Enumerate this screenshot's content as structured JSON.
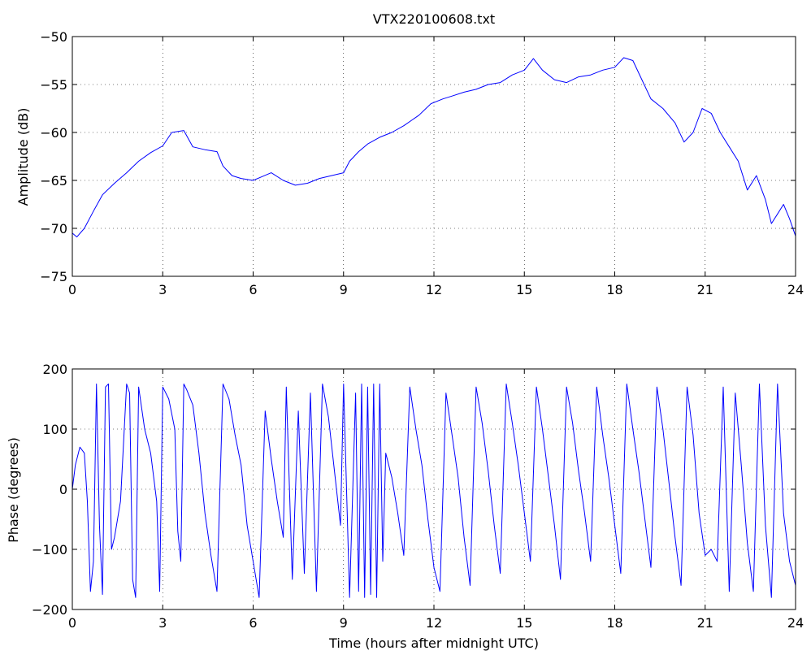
{
  "chart_data": [
    {
      "type": "line",
      "title": "VTX220100608.txt",
      "xlabel": "",
      "ylabel": "Amplitude (dB)",
      "xlim": [
        0,
        24
      ],
      "ylim": [
        -75,
        -50
      ],
      "xticks": [
        "0",
        "3",
        "6",
        "9",
        "12",
        "15",
        "18",
        "21",
        "24"
      ],
      "yticks": [
        "−50",
        "−55",
        "−60",
        "−65",
        "−70",
        "−75"
      ],
      "grid": true,
      "color": "#0000ff",
      "series": [
        {
          "x": [
            0,
            0.15,
            0.4,
            0.7,
            1.0,
            1.4,
            1.8,
            2.2,
            2.6,
            3.0,
            3.3,
            3.7,
            4.0,
            4.4,
            4.8,
            5.0,
            5.3,
            5.6,
            6.0,
            6.3,
            6.6,
            7.0,
            7.4,
            7.8,
            8.2,
            8.6,
            9.0,
            9.2,
            9.5,
            9.8,
            10.2,
            10.6,
            11.0,
            11.5,
            11.9,
            12.3,
            12.6,
            13.0,
            13.4,
            13.8,
            14.2,
            14.6,
            15.0,
            15.3,
            15.6,
            16.0,
            16.4,
            16.8,
            17.2,
            17.6,
            18.0,
            18.3,
            18.6,
            18.9,
            19.2,
            19.6,
            20.0,
            20.3,
            20.6,
            20.9,
            21.2,
            21.5,
            21.8,
            22.1,
            22.4,
            22.7,
            23.0,
            23.2,
            23.4,
            23.6,
            23.8,
            24.0
          ],
          "y": [
            -70.5,
            -70.9,
            -70.0,
            -68.2,
            -66.5,
            -65.3,
            -64.2,
            -63.0,
            -62.1,
            -61.4,
            -60.0,
            -59.8,
            -61.5,
            -61.8,
            -62.0,
            -63.5,
            -64.5,
            -64.8,
            -65.0,
            -64.6,
            -64.2,
            -65.0,
            -65.5,
            -65.3,
            -64.8,
            -64.5,
            -64.2,
            -63.0,
            -62.0,
            -61.2,
            -60.5,
            -60.0,
            -59.3,
            -58.2,
            -57.0,
            -56.5,
            -56.2,
            -55.8,
            -55.5,
            -55.0,
            -54.8,
            -54.0,
            -53.5,
            -52.3,
            -53.5,
            -54.5,
            -54.8,
            -54.2,
            -54.0,
            -53.5,
            -53.2,
            -52.2,
            -52.5,
            -54.5,
            -56.5,
            -57.5,
            -59.0,
            -61.0,
            -60.0,
            -57.5,
            -58.0,
            -60.0,
            -61.5,
            -63.0,
            -66.0,
            -64.5,
            -67.0,
            -69.5,
            -68.5,
            -67.5,
            -69.0,
            -70.8
          ]
        }
      ]
    },
    {
      "type": "line",
      "title": "",
      "xlabel": "Time (hours after midnight UTC)",
      "ylabel": "Phase (degrees)",
      "xlim": [
        0,
        24
      ],
      "ylim": [
        -200,
        200
      ],
      "xticks": [
        "0",
        "3",
        "6",
        "9",
        "12",
        "15",
        "18",
        "21",
        "24"
      ],
      "yticks": [
        "200",
        "100",
        "0",
        "−100",
        "−200"
      ],
      "grid": true,
      "color": "#0000ff",
      "series": [
        {
          "x": [
            0,
            0.1,
            0.25,
            0.4,
            0.5,
            0.6,
            0.7,
            0.8,
            0.9,
            1.0,
            1.1,
            1.2,
            1.3,
            1.4,
            1.6,
            1.8,
            1.9,
            2.0,
            2.1,
            2.2,
            2.4,
            2.6,
            2.8,
            2.9,
            3.0,
            3.2,
            3.4,
            3.5,
            3.6,
            3.7,
            3.8,
            4.0,
            4.2,
            4.4,
            4.6,
            4.8,
            5.0,
            5.2,
            5.4,
            5.6,
            5.8,
            6.0,
            6.1,
            6.2,
            6.4,
            6.6,
            6.8,
            7.0,
            7.1,
            7.3,
            7.5,
            7.7,
            7.9,
            8.1,
            8.3,
            8.5,
            8.7,
            8.9,
            9.0,
            9.2,
            9.4,
            9.5,
            9.6,
            9.7,
            9.8,
            9.9,
            10.0,
            10.1,
            10.2,
            10.3,
            10.4,
            10.6,
            10.8,
            11.0,
            11.2,
            11.4,
            11.6,
            11.8,
            12.0,
            12.2,
            12.4,
            12.6,
            12.8,
            13.0,
            13.2,
            13.4,
            13.6,
            13.8,
            14.0,
            14.2,
            14.4,
            14.6,
            14.8,
            15.0,
            15.2,
            15.4,
            15.6,
            15.8,
            16.0,
            16.2,
            16.4,
            16.6,
            16.8,
            17.0,
            17.2,
            17.4,
            17.6,
            17.8,
            18.0,
            18.2,
            18.4,
            18.6,
            18.8,
            19.0,
            19.2,
            19.4,
            19.6,
            19.8,
            20.0,
            20.2,
            20.4,
            20.6,
            20.8,
            21.0,
            21.2,
            21.4,
            21.6,
            21.8,
            22.0,
            22.2,
            22.4,
            22.6,
            22.8,
            23.0,
            23.2,
            23.4,
            23.6,
            23.8,
            24.0
          ],
          "y": [
            0,
            40,
            70,
            60,
            -20,
            -170,
            -120,
            175,
            -60,
            -175,
            170,
            175,
            -100,
            -80,
            -20,
            175,
            160,
            -150,
            -180,
            170,
            100,
            60,
            -20,
            -170,
            170,
            150,
            100,
            -70,
            -120,
            175,
            165,
            140,
            60,
            -40,
            -110,
            -170,
            175,
            150,
            90,
            40,
            -60,
            -120,
            -150,
            -180,
            130,
            50,
            -20,
            -80,
            170,
            -150,
            130,
            -140,
            160,
            -170,
            175,
            120,
            30,
            -60,
            175,
            -180,
            160,
            -170,
            175,
            -180,
            170,
            -175,
            175,
            -180,
            175,
            -120,
            60,
            20,
            -40,
            -110,
            170,
            100,
            40,
            -50,
            -130,
            -170,
            160,
            90,
            20,
            -80,
            -160,
            170,
            110,
            30,
            -60,
            -140,
            175,
            110,
            40,
            -40,
            -120,
            170,
            100,
            20,
            -60,
            -150,
            170,
            110,
            30,
            -40,
            -120,
            170,
            90,
            20,
            -60,
            -140,
            175,
            100,
            30,
            -50,
            -130,
            170,
            100,
            10,
            -80,
            -160,
            170,
            90,
            -40,
            -110,
            -100,
            -120,
            170,
            -170,
            160,
            40,
            -90,
            -170,
            175,
            -60,
            -180,
            175,
            -40,
            -120,
            -160
          ]
        }
      ]
    }
  ]
}
